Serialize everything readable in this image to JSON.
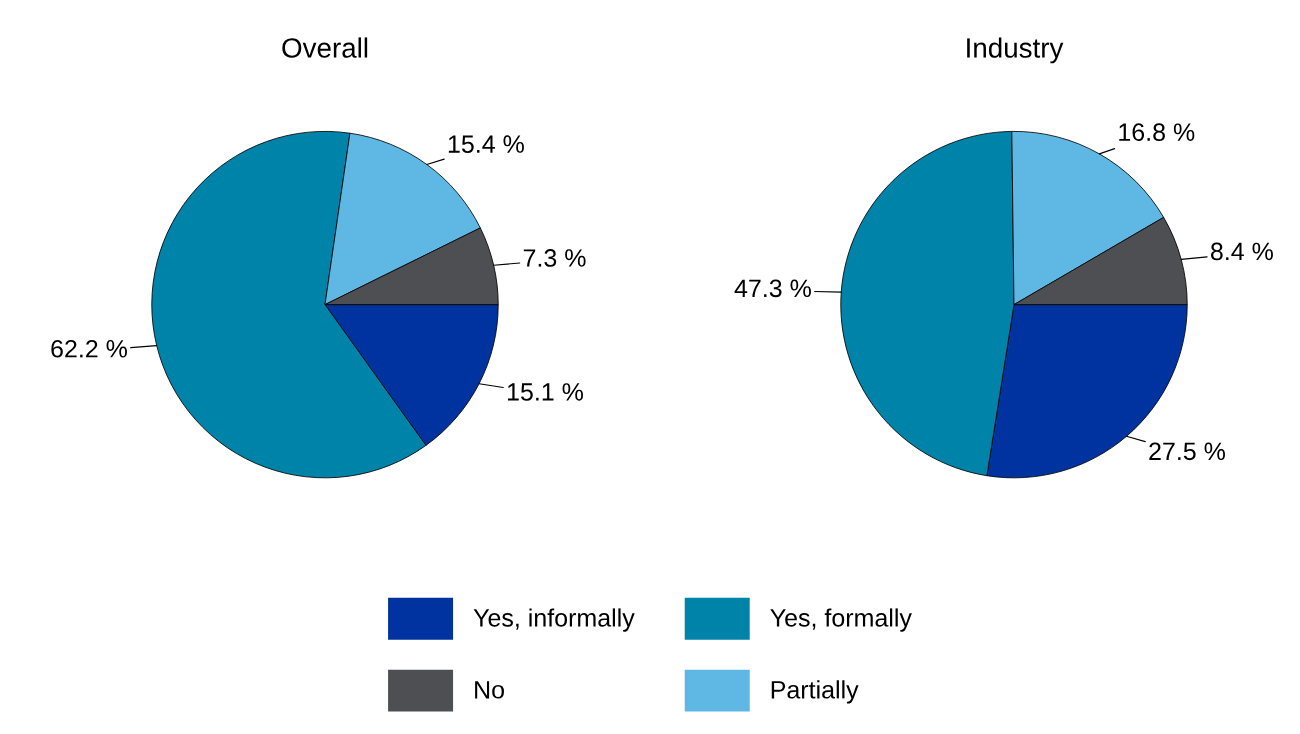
{
  "chart_data": [
    {
      "type": "pie",
      "title": "Overall",
      "categories": [
        "Yes, informally",
        "Yes, formally",
        "Partially",
        "No"
      ],
      "values": [
        15.1,
        62.2,
        15.4,
        7.3
      ],
      "value_labels": [
        "15.1 %",
        "62.2 %",
        "15.4 %",
        "7.3 %"
      ],
      "colors": [
        "#0033a0",
        "#0083a9",
        "#5fb8e3",
        "#4d4f53"
      ],
      "legend": "bottom"
    },
    {
      "type": "pie",
      "title": "Industry",
      "categories": [
        null,
        null,
        null,
        null
      ],
      "values": [
        27.5,
        47.3,
        16.8,
        8.4
      ],
      "value_labels": [
        "27.5 %",
        "47.3 %",
        "16.8 %",
        "8.4 %"
      ],
      "colors": [
        "#0033a0",
        "#0083a9",
        "#5fb8e3",
        "#4d4f53"
      ]
    }
  ]
}
